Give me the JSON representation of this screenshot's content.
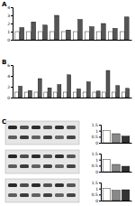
{
  "chart_data": [
    {
      "type": "bar",
      "title": "A",
      "categories": [
        null,
        null,
        null,
        null,
        null,
        null,
        null,
        null,
        null,
        null
      ],
      "series": [
        {
          "color": "#ffffff",
          "values": [
            1,
            1,
            1,
            1,
            1,
            1,
            1,
            1,
            1,
            1
          ]
        },
        {
          "color": "#555555",
          "values": [
            1.5,
            2.2,
            1.8,
            3.0,
            1.2,
            2.5,
            1.6,
            2.0,
            1.4,
            2.8
          ]
        }
      ],
      "ylim": [
        0,
        4
      ],
      "yticks": [
        0,
        1,
        2,
        3,
        4
      ]
    },
    {
      "type": "bar",
      "title": "B",
      "categories": [
        null,
        null,
        null,
        null,
        null,
        null,
        null,
        null,
        null,
        null,
        null,
        null
      ],
      "series": [
        {
          "color": "#ffffff",
          "values": [
            1,
            1,
            1,
            1,
            1,
            1,
            1,
            1,
            1,
            1,
            1,
            1
          ]
        },
        {
          "color": "#555555",
          "values": [
            2.1,
            1.3,
            3.5,
            1.8,
            2.4,
            4.2,
            1.6,
            2.9,
            1.2,
            5.0,
            2.2,
            1.7
          ]
        }
      ],
      "ylim": [
        0,
        6
      ],
      "yticks": [
        0,
        2,
        4,
        6
      ]
    },
    {
      "type": "bar",
      "title": "C",
      "categories": [
        null,
        null,
        null
      ],
      "values": [
        1,
        0.75,
        0.55
      ],
      "colors": [
        "#ffffff",
        "#888888",
        "#333333"
      ],
      "ylim": [
        0,
        1.5
      ],
      "yticks": [
        0,
        0.5,
        1,
        1.5
      ]
    },
    {
      "type": "bar",
      "categories": [
        null,
        null,
        null
      ],
      "values": [
        1,
        0.6,
        0.45
      ],
      "colors": [
        "#ffffff",
        "#888888",
        "#333333"
      ],
      "ylim": [
        0,
        1.5
      ],
      "yticks": [
        0,
        0.5,
        1,
        1.5
      ]
    },
    {
      "type": "bar",
      "categories": [
        null,
        null,
        null
      ],
      "values": [
        1,
        0.85,
        0.9
      ],
      "colors": [
        "#ffffff",
        "#888888",
        "#333333"
      ],
      "ylim": [
        0,
        1.5
      ],
      "yticks": [
        0,
        0.5,
        1,
        1.5
      ]
    }
  ]
}
